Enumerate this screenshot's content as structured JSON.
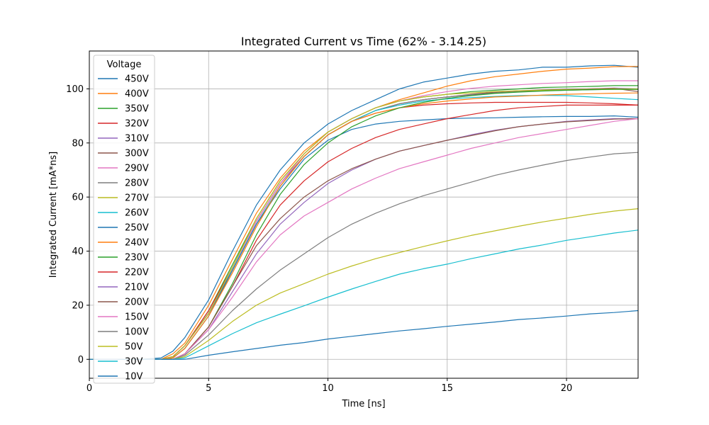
{
  "chart_data": {
    "type": "line",
    "title": "Integrated Current vs Time (62% - 3.14.25)",
    "xlabel": "Time [ns]",
    "ylabel": "Integrated Current [mA*ns]",
    "xlim": [
      0,
      23
    ],
    "ylim": [
      -7,
      114
    ],
    "xticks": [
      0,
      5,
      10,
      15,
      20
    ],
    "yticks": [
      0,
      20,
      40,
      60,
      80,
      100
    ],
    "grid": true,
    "legend": {
      "title": "Voltage",
      "placement": "upper-left"
    },
    "series": [
      {
        "name": "450V",
        "color": "#1f77b4",
        "x": [
          0,
          2,
          3,
          3.5,
          4,
          5,
          6,
          7,
          8,
          9,
          10,
          11,
          12,
          13,
          14,
          15,
          16,
          17,
          18,
          19,
          20,
          21,
          22,
          23
        ],
        "y": [
          0,
          0,
          0.5,
          3,
          8,
          22,
          40,
          57,
          70,
          80,
          87,
          92,
          96,
          100,
          102.5,
          104,
          105.5,
          106.5,
          107,
          108,
          108,
          108.5,
          108.7,
          108
        ]
      },
      {
        "name": "400V",
        "color": "#ff7f0e",
        "x": [
          0,
          2,
          3,
          3.5,
          4,
          5,
          6,
          7,
          8,
          9,
          10,
          11,
          12,
          13,
          14,
          15,
          16,
          17,
          18,
          19,
          20,
          21,
          22,
          23
        ],
        "y": [
          0,
          0,
          0,
          2,
          6,
          20,
          37,
          54,
          67,
          77,
          84,
          89,
          93,
          96,
          98.5,
          101,
          103,
          104.5,
          105.5,
          106.5,
          107.3,
          107.7,
          108.2,
          108.3
        ]
      },
      {
        "name": "350V",
        "color": "#2ca02c",
        "x": [
          0,
          2,
          3,
          3.5,
          4,
          5,
          6,
          7,
          8,
          9,
          10,
          11,
          12,
          13,
          14,
          15,
          16,
          17,
          18,
          19,
          20,
          21,
          22,
          23
        ],
        "y": [
          0,
          0,
          0,
          1,
          5,
          18,
          35,
          52,
          66,
          76,
          84,
          89,
          93,
          95.5,
          97,
          98,
          99,
          99.5,
          100,
          100.5,
          100.7,
          100.9,
          101.2,
          101.2
        ]
      },
      {
        "name": "320V",
        "color": "#d62728",
        "x": [
          0,
          2,
          3,
          3.5,
          4,
          5,
          6,
          7,
          8,
          9,
          10,
          11,
          12,
          13,
          14,
          15,
          16,
          17,
          18,
          19,
          20,
          21,
          22,
          23
        ],
        "y": [
          0,
          0,
          0,
          1,
          5,
          18,
          34,
          51,
          65,
          75,
          83,
          88,
          91,
          93,
          94,
          94.5,
          94.8,
          95,
          95,
          95,
          95,
          94.8,
          94.5,
          94
        ]
      },
      {
        "name": "310V",
        "color": "#9467bd",
        "x": [
          0,
          2,
          3,
          3.5,
          4,
          5,
          6,
          7,
          8,
          9,
          10,
          11,
          12,
          13,
          14,
          15,
          16,
          17,
          18,
          19,
          20,
          21,
          22,
          23
        ],
        "y": [
          0,
          0,
          0,
          1,
          5,
          17,
          34,
          51,
          65,
          75,
          83,
          88,
          92,
          94.5,
          96,
          97,
          97.8,
          98.5,
          99,
          99.5,
          99.8,
          100,
          100.3,
          100
        ]
      },
      {
        "name": "300V",
        "color": "#8c564b",
        "x": [
          0,
          2,
          3,
          3.5,
          4,
          5,
          6,
          7,
          8,
          9,
          10,
          11,
          12,
          13,
          14,
          15,
          16,
          17,
          18,
          19,
          20,
          21,
          22,
          23
        ],
        "y": [
          0,
          0,
          0,
          1,
          5,
          17,
          33,
          50,
          64,
          75,
          83,
          88,
          92,
          94.5,
          96,
          97,
          98,
          98.8,
          99.3,
          99.6,
          99.8,
          100,
          100.2,
          99
        ]
      },
      {
        "name": "290V",
        "color": "#e377c2",
        "x": [
          0,
          2,
          3,
          3.5,
          4,
          5,
          6,
          7,
          8,
          9,
          10,
          11,
          12,
          13,
          14,
          15,
          16,
          17,
          18,
          19,
          20,
          21,
          22,
          23
        ],
        "y": [
          0,
          0,
          0,
          1,
          5,
          17,
          34,
          51,
          65,
          76,
          84,
          89,
          93,
          95.5,
          97.5,
          99,
          100.2,
          101,
          101.5,
          102,
          102.3,
          102.7,
          103,
          103
        ]
      },
      {
        "name": "280V",
        "color": "#7f7f7f",
        "x": [
          0,
          2,
          3,
          3.5,
          4,
          5,
          6,
          7,
          8,
          9,
          10,
          11,
          12,
          13,
          14,
          15,
          16,
          17,
          18,
          19,
          20,
          21,
          22,
          23
        ],
        "y": [
          0,
          0,
          0,
          1,
          5,
          17,
          33,
          50,
          64,
          75,
          83,
          88,
          92,
          94.5,
          96,
          97,
          97.8,
          98.5,
          99,
          99.3,
          99.5,
          99.7,
          99.8,
          99.8
        ]
      },
      {
        "name": "270V",
        "color": "#bcbd22",
        "x": [
          0,
          2,
          3,
          3.5,
          4,
          5,
          6,
          7,
          8,
          9,
          10,
          11,
          12,
          13,
          14,
          15,
          16,
          17,
          18,
          19,
          20,
          21,
          22,
          23
        ],
        "y": [
          0,
          0,
          0,
          1,
          5,
          17,
          34,
          52,
          66,
          76,
          84,
          89,
          93,
          95.5,
          97,
          98,
          98.5,
          99,
          99.3,
          99.5,
          99.7,
          99.8,
          100,
          100
        ]
      },
      {
        "name": "260V",
        "color": "#17becf",
        "x": [
          0,
          2,
          3,
          3.5,
          4,
          5,
          6,
          7,
          8,
          9,
          10,
          11,
          12,
          13,
          14,
          15,
          16,
          17,
          18,
          19,
          20,
          21,
          22,
          23
        ],
        "y": [
          0,
          0,
          0,
          0.5,
          4,
          16,
          33,
          50,
          64,
          75,
          83,
          88,
          92,
          94,
          95.5,
          96.3,
          96.8,
          97.2,
          97.5,
          97.6,
          97.5,
          97,
          96.5,
          96
        ]
      },
      {
        "name": "250V",
        "color": "#1f77b4",
        "x": [
          0,
          2,
          3,
          3.5,
          4,
          5,
          6,
          7,
          8,
          9,
          10,
          11,
          12,
          13,
          14,
          15,
          16,
          17,
          18,
          19,
          20,
          21,
          22,
          23
        ],
        "y": [
          0,
          0,
          0,
          0.5,
          4,
          16,
          33,
          50,
          63,
          74,
          81,
          85,
          87,
          88,
          88.5,
          89,
          89.2,
          89.3,
          89.5,
          89.7,
          89.8,
          89.8,
          90,
          89.5
        ]
      },
      {
        "name": "240V",
        "color": "#ff7f0e",
        "x": [
          0,
          2,
          3,
          3.5,
          4,
          5,
          6,
          7,
          8,
          9,
          10,
          11,
          12,
          13,
          14,
          15,
          16,
          17,
          18,
          19,
          20,
          21,
          22,
          23
        ],
        "y": [
          0,
          0,
          0,
          0.5,
          4,
          16,
          32,
          49,
          64,
          75,
          83,
          88,
          91,
          93,
          94.5,
          95.5,
          96.3,
          97,
          97.3,
          97.7,
          98,
          98.2,
          98.4,
          98.5
        ]
      },
      {
        "name": "230V",
        "color": "#2ca02c",
        "x": [
          0,
          2,
          3,
          3.5,
          4,
          5,
          6,
          7,
          8,
          9,
          10,
          11,
          12,
          13,
          14,
          15,
          16,
          17,
          18,
          19,
          20,
          21,
          22,
          23
        ],
        "y": [
          0,
          0,
          0,
          0,
          2,
          12,
          28,
          46,
          61,
          72,
          80,
          86,
          90,
          93,
          95,
          96.5,
          97.5,
          98.3,
          98.8,
          99.2,
          99.5,
          99.7,
          99.8,
          99.8
        ]
      },
      {
        "name": "220V",
        "color": "#d62728",
        "x": [
          0,
          2,
          3,
          3.5,
          4,
          5,
          6,
          7,
          8,
          9,
          10,
          11,
          12,
          13,
          14,
          15,
          16,
          17,
          18,
          19,
          20,
          21,
          22,
          23
        ],
        "y": [
          0,
          0,
          0,
          0,
          2,
          12,
          27,
          44,
          57,
          66,
          73,
          78,
          82,
          85,
          87,
          89,
          90.5,
          92,
          93,
          93.5,
          94,
          94,
          94,
          94
        ]
      },
      {
        "name": "210V",
        "color": "#9467bd",
        "x": [
          0,
          2,
          3,
          3.5,
          4,
          5,
          6,
          7,
          8,
          9,
          10,
          11,
          12,
          13,
          14,
          15,
          16,
          17,
          18,
          19,
          20,
          21,
          22,
          23
        ],
        "y": [
          0,
          0,
          0,
          0,
          2,
          11,
          25,
          39,
          50,
          58,
          65,
          70,
          74,
          77,
          79,
          81,
          83,
          84.7,
          86,
          87,
          88,
          88.5,
          89,
          89
        ]
      },
      {
        "name": "200V",
        "color": "#8c564b",
        "x": [
          0,
          2,
          3,
          3.5,
          4,
          5,
          6,
          7,
          8,
          9,
          10,
          11,
          12,
          13,
          14,
          15,
          16,
          17,
          18,
          19,
          20,
          21,
          22,
          23
        ],
        "y": [
          0,
          0,
          0,
          0,
          2,
          12,
          27,
          42,
          52,
          60,
          66,
          70.5,
          74,
          77,
          79,
          81,
          82.7,
          84.5,
          86,
          87,
          87.8,
          88.3,
          88.8,
          89
        ]
      },
      {
        "name": "150V",
        "color": "#e377c2",
        "x": [
          0,
          2,
          3,
          3.5,
          4,
          5,
          6,
          7,
          8,
          9,
          10,
          11,
          12,
          13,
          14,
          15,
          16,
          17,
          18,
          19,
          20,
          21,
          22,
          23
        ],
        "y": [
          0,
          0,
          0,
          0,
          2,
          11,
          23,
          36,
          46,
          53,
          58,
          63,
          67,
          70.5,
          73,
          75.5,
          78,
          80,
          82,
          83.5,
          85,
          86.5,
          88,
          89
        ]
      },
      {
        "name": "100V",
        "color": "#7f7f7f",
        "x": [
          0,
          2,
          3,
          3.5,
          4,
          5,
          6,
          7,
          8,
          9,
          10,
          11,
          12,
          13,
          14,
          15,
          16,
          17,
          18,
          19,
          20,
          21,
          22,
          23
        ],
        "y": [
          0,
          0,
          0,
          0,
          1.5,
          9,
          18,
          26,
          33,
          39,
          45,
          50,
          54,
          57.5,
          60.5,
          63,
          65.5,
          68,
          70,
          71.8,
          73.5,
          74.8,
          76,
          76.5
        ]
      },
      {
        "name": "50V",
        "color": "#bcbd22",
        "x": [
          0,
          2,
          3,
          3.5,
          4,
          5,
          6,
          7,
          8,
          9,
          10,
          11,
          12,
          13,
          14,
          15,
          16,
          17,
          18,
          19,
          20,
          21,
          22,
          23
        ],
        "y": [
          0,
          0,
          0,
          0,
          1,
          7,
          14,
          20,
          24.5,
          28,
          31.5,
          34.5,
          37.2,
          39.5,
          41.7,
          43.8,
          45.8,
          47.5,
          49.2,
          50.8,
          52.2,
          53.6,
          54.8,
          55.7
        ]
      },
      {
        "name": "30V",
        "color": "#17becf",
        "x": [
          0,
          2,
          3,
          3.5,
          4,
          5,
          6,
          7,
          8,
          9,
          10,
          11,
          12,
          13,
          14,
          15,
          16,
          17,
          18,
          19,
          20,
          21,
          22,
          23
        ],
        "y": [
          0,
          0,
          0,
          0,
          0.5,
          5,
          9.5,
          13.5,
          16.7,
          19.8,
          23,
          26,
          28.8,
          31.5,
          33.5,
          35.2,
          37.2,
          39,
          40.8,
          42.3,
          44,
          45.3,
          46.7,
          47.8
        ]
      },
      {
        "name": "10V",
        "color": "#1f77b4",
        "x": [
          0,
          2,
          3,
          3.5,
          4,
          5,
          6,
          7,
          8,
          9,
          10,
          11,
          12,
          13,
          14,
          15,
          16,
          17,
          18,
          19,
          20,
          21,
          22,
          23
        ],
        "y": [
          0,
          0,
          0,
          0,
          0,
          1.5,
          2.8,
          4,
          5.2,
          6.2,
          7.5,
          8.5,
          9.5,
          10.5,
          11.3,
          12.2,
          13,
          13.8,
          14.7,
          15.3,
          16,
          16.8,
          17.3,
          18
        ]
      }
    ]
  }
}
